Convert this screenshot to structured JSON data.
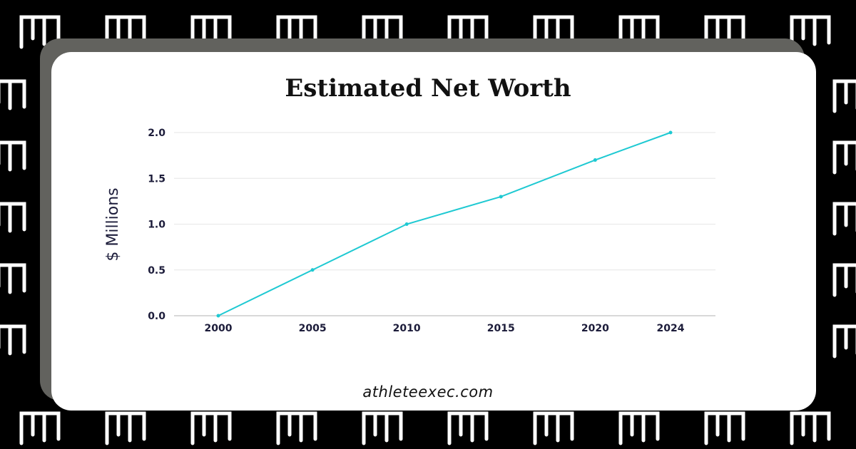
{
  "chart_data": {
    "type": "line",
    "title": "Estimated Net Worth",
    "xlabel": "",
    "ylabel": "$ Millions",
    "x": [
      2000,
      2005,
      2010,
      2015,
      2020,
      2024
    ],
    "x_tick_labels": [
      "2000",
      "2005",
      "2010",
      "2015",
      "2020",
      "2024"
    ],
    "y_tick_labels": [
      "0.0",
      "0.5",
      "1.0",
      "1.5",
      "2.0"
    ],
    "y_ticks": [
      0,
      0.5,
      1.0,
      1.5,
      2.0
    ],
    "ylim": [
      0,
      2.0
    ],
    "series": [
      {
        "values": [
          0,
          0.5,
          1.0,
          1.3,
          1.7,
          2.0
        ],
        "color": "#1ec9d2"
      }
    ],
    "grid": true,
    "legend": "none"
  },
  "footer": {
    "text": "athleteexec.com"
  },
  "colors": {
    "background": "#000000",
    "card": "#ffffff",
    "card_shadow": "#62625e",
    "gridline": "#e6e6e6",
    "line": "#1ec9d2"
  }
}
